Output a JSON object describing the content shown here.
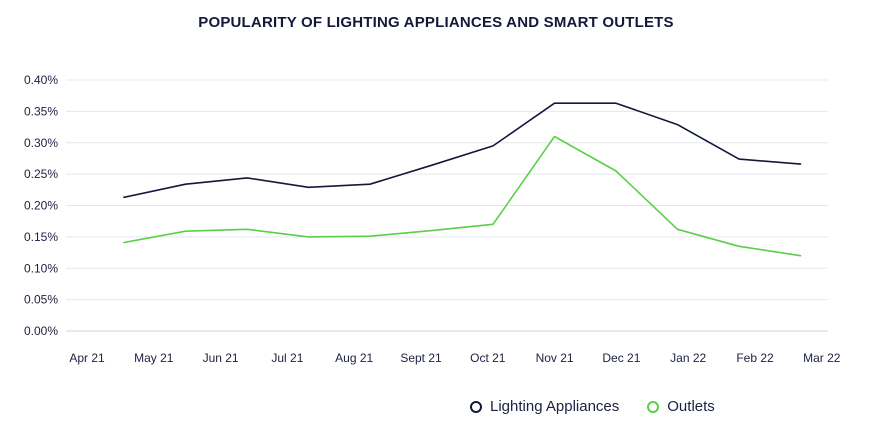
{
  "chart_data": {
    "type": "line",
    "title": "POPULARITY OF LIGHTING APPLIANCES AND SMART OUTLETS",
    "xlabel": "",
    "ylabel": "",
    "categories": [
      "Apr 21",
      "May 21",
      "Jun 21",
      "Jul 21",
      "Aug 21",
      "Sept 21",
      "Oct 21",
      "Nov 21",
      "Dec 21",
      "Jan 22",
      "Feb 22",
      "Mar 22"
    ],
    "y_ticks": [
      "0.00%",
      "0.05%",
      "0.10%",
      "0.15%",
      "0.20%",
      "0.25%",
      "0.30%",
      "0.35%",
      "0.40%"
    ],
    "ylim": [
      0,
      0.4
    ],
    "grid": true,
    "legend_position": "bottom-right",
    "series": [
      {
        "name": "Lighting Appliances",
        "color": "#14183a",
        "values": [
          0.213,
          0.234,
          0.244,
          0.229,
          0.234,
          0.264,
          0.295,
          0.363,
          0.363,
          0.329,
          0.274,
          0.266
        ]
      },
      {
        "name": "Outlets",
        "color": "#5ccf4a",
        "values": [
          0.141,
          0.159,
          0.162,
          0.15,
          0.151,
          0.16,
          0.17,
          0.31,
          0.255,
          0.162,
          0.135,
          0.12
        ]
      }
    ]
  }
}
